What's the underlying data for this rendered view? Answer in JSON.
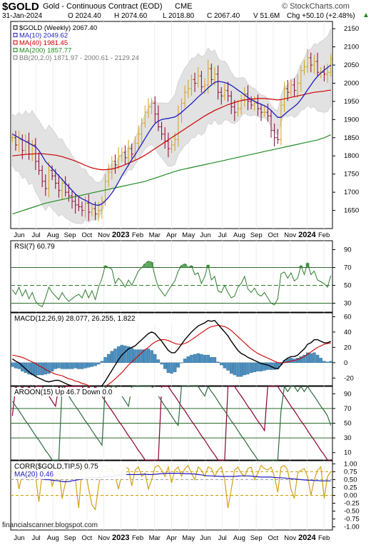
{
  "header": {
    "symbol": "$GOLD",
    "description": "Gold - Continuous Contract (EOD)",
    "exchange": "CME",
    "copyright": "© StockCharts.com",
    "date": "31-Jan-2024",
    "open": "O 2024.40",
    "high": "H 2074.60",
    "low": "L 2018.80",
    "close": "C 2067.40",
    "volume": "V 51.6M",
    "change": "Chg +50.10 (+2.48%)",
    "change_arrow": "▲"
  },
  "watermark": "financialscanner.blogspot.com",
  "colors": {
    "up": "#d4a017",
    "down": "#8b0030",
    "ma10": "#1d1dbf",
    "ma40": "#cc0000",
    "ma200": "#228b22",
    "bband": "#e2e2e2",
    "rsi": "#2e7d2e",
    "macd": "#000000",
    "signal": "#cc0000",
    "histogram": "#4a90c2",
    "aroon_up": "#2e6b3e",
    "aroon_down": "#8b0030",
    "corr": "#d4a017",
    "corr_ma": "#1d1dbf"
  },
  "x_axis_labels": [
    "Jun",
    "Jul",
    "Aug",
    "Sep",
    "Oct",
    "Nov",
    "2023",
    "Feb",
    "Mar",
    "Apr",
    "May",
    "Jun",
    "Jul",
    "Aug",
    "Sep",
    "Oct",
    "Nov",
    "2024",
    "Feb"
  ],
  "chart_data": [
    {
      "type": "candlestick",
      "legend": [
        {
          "text": "$GOLD (Weekly) 2067.40",
          "color": "#000000"
        },
        {
          "text": "MA(10) 2049.62",
          "color": "#1d1dbf"
        },
        {
          "text": "MA(40) 1981.45",
          "color": "#cc0000"
        },
        {
          "text": "MA(200) 1857.77",
          "color": "#228b22"
        },
        {
          "text": "BB(20,2.0) 1871.97 - 2000.61 - 2129.24",
          "color": "#777777"
        }
      ],
      "ylim": [
        1600,
        2170
      ],
      "y_ticks": [
        1650,
        1700,
        1750,
        1800,
        1850,
        1900,
        1950,
        2000,
        2050,
        2100,
        2150
      ],
      "close": [
        1850,
        1830,
        1845,
        1815,
        1840,
        1805,
        1830,
        1785,
        1760,
        1730,
        1710,
        1760,
        1745,
        1725,
        1705,
        1725,
        1700,
        1690,
        1675,
        1665,
        1660,
        1650,
        1670,
        1645,
        1655,
        1640,
        1650,
        1675,
        1730,
        1755,
        1785,
        1775,
        1800,
        1810,
        1795,
        1820,
        1805,
        1835,
        1860,
        1890,
        1920,
        1935,
        1945,
        1915,
        1880,
        1860,
        1840,
        1820,
        1830,
        1845,
        1915,
        1945,
        1975,
        1985,
        2010,
        2000,
        2020,
        1990,
        1995,
        2040,
        2010,
        2025,
        1975,
        1965,
        1980,
        1965,
        1935,
        1920,
        1930,
        1955,
        1970,
        1950,
        1940,
        1945,
        1930,
        1920,
        1920,
        1910,
        1870,
        1850,
        1845,
        1940,
        1985,
        1975,
        1995,
        1980,
        2000,
        2035,
        2045,
        2070,
        2050,
        2060,
        2030,
        2030,
        2025,
        2030,
        2067
      ],
      "ma10": [
        1860,
        1855,
        1850,
        1845,
        1840,
        1835,
        1830,
        1825,
        1815,
        1800,
        1785,
        1775,
        1765,
        1755,
        1745,
        1735,
        1725,
        1715,
        1705,
        1695,
        1688,
        1682,
        1678,
        1673,
        1668,
        1665,
        1664,
        1668,
        1676,
        1686,
        1698,
        1712,
        1728,
        1745,
        1760,
        1775,
        1790,
        1803,
        1818,
        1833,
        1848,
        1863,
        1877,
        1889,
        1896,
        1900,
        1902,
        1903,
        1905,
        1907,
        1913,
        1920,
        1928,
        1936,
        1944,
        1953,
        1962,
        1970,
        1978,
        1987,
        1995,
        2002,
        2005,
        2004,
        2002,
        1999,
        1994,
        1988,
        1981,
        1975,
        1968,
        1961,
        1955,
        1950,
        1946,
        1942,
        1938,
        1933,
        1925,
        1915,
        1906,
        1906,
        1914,
        1922,
        1929,
        1936,
        1944,
        1955,
        1968,
        1982,
        1995,
        2008,
        2019,
        2028,
        2036,
        2043,
        2050
      ],
      "ma40": [
        1800,
        1801,
        1802,
        1803,
        1804,
        1805,
        1805,
        1806,
        1806,
        1806,
        1805,
        1804,
        1803,
        1802,
        1800,
        1798,
        1795,
        1792,
        1789,
        1786,
        1782,
        1778,
        1774,
        1770,
        1767,
        1765,
        1763,
        1762,
        1762,
        1763,
        1764,
        1766,
        1769,
        1772,
        1776,
        1780,
        1784,
        1788,
        1792,
        1797,
        1802,
        1808,
        1814,
        1820,
        1826,
        1832,
        1838,
        1844,
        1850,
        1856,
        1862,
        1868,
        1874,
        1880,
        1886,
        1892,
        1898,
        1904,
        1910,
        1915,
        1920,
        1925,
        1929,
        1933,
        1937,
        1941,
        1944,
        1947,
        1950,
        1952,
        1954,
        1955,
        1956,
        1957,
        1958,
        1958,
        1958,
        1957,
        1956,
        1955,
        1954,
        1955,
        1957,
        1959,
        1961,
        1963,
        1965,
        1967,
        1969,
        1971,
        1973,
        1975,
        1976,
        1977,
        1978,
        1980,
        1981
      ],
      "ma200": [
        1640,
        1643,
        1646,
        1649,
        1652,
        1655,
        1658,
        1661,
        1664,
        1667,
        1670,
        1672,
        1674,
        1676,
        1678,
        1680,
        1682,
        1684,
        1686,
        1688,
        1690,
        1692,
        1694,
        1696,
        1698,
        1700,
        1702,
        1704,
        1706,
        1708,
        1710,
        1712,
        1714,
        1716,
        1718,
        1720,
        1722,
        1724,
        1726,
        1728,
        1730,
        1733,
        1736,
        1739,
        1742,
        1745,
        1748,
        1751,
        1754,
        1757,
        1760,
        1762,
        1764,
        1766,
        1768,
        1770,
        1772,
        1774,
        1776,
        1778,
        1780,
        1782,
        1784,
        1786,
        1788,
        1790,
        1792,
        1794,
        1796,
        1798,
        1800,
        1802,
        1804,
        1806,
        1808,
        1810,
        1812,
        1814,
        1816,
        1818,
        1820,
        1822,
        1824,
        1826,
        1828,
        1830,
        1832,
        1834,
        1836,
        1838,
        1840,
        1842,
        1844,
        1847,
        1850,
        1854,
        1858
      ]
    },
    {
      "type": "line",
      "legend": "RSI(7) 60.79",
      "ylim": [
        20,
        100
      ],
      "y_ticks": [
        30,
        50,
        70,
        90
      ],
      "reference_lines": [
        70,
        50,
        30
      ],
      "values": [
        45,
        40,
        48,
        38,
        45,
        35,
        42,
        32,
        28,
        26,
        36,
        48,
        42,
        38,
        34,
        42,
        36,
        32,
        35,
        38,
        40,
        36,
        45,
        36,
        44,
        34,
        48,
        58,
        72,
        70,
        68,
        52,
        58,
        54,
        48,
        56,
        50,
        58,
        66,
        70,
        74,
        77,
        76,
        60,
        48,
        43,
        38,
        44,
        50,
        55,
        66,
        72,
        74,
        70,
        72,
        62,
        64,
        52,
        60,
        73,
        56,
        60,
        44,
        42,
        50,
        42,
        36,
        38,
        48,
        52,
        60,
        46,
        42,
        47,
        40,
        38,
        42,
        36,
        30,
        28,
        35,
        63,
        65,
        58,
        64,
        55,
        58,
        72,
        62,
        75,
        62,
        66,
        56,
        54,
        52,
        48,
        61
      ]
    },
    {
      "type": "line",
      "legend": "MACD(12,26,9) 28.077, 26.255, 1.822",
      "ylim": [
        -30,
        65
      ],
      "y_ticks": [
        -20,
        0,
        20,
        40,
        60
      ],
      "macd": [
        5,
        2,
        0,
        -4,
        -8,
        -12,
        -15,
        -18,
        -20,
        -22,
        -24,
        -25,
        -24,
        -23,
        -23,
        -25,
        -27,
        -29,
        -30,
        -31,
        -33,
        -35,
        -35,
        -36,
        -36,
        -36,
        -34,
        -30,
        -24,
        -17,
        -10,
        -3,
        4,
        10,
        14,
        18,
        20,
        22,
        26,
        30,
        34,
        38,
        40,
        38,
        33,
        28,
        22,
        16,
        13,
        13,
        18,
        24,
        30,
        35,
        40,
        44,
        48,
        50,
        52,
        55,
        54,
        55,
        50,
        45,
        40,
        35,
        28,
        22,
        16,
        12,
        10,
        7,
        5,
        3,
        1,
        -1,
        -2,
        -3,
        -5,
        -7,
        -8,
        -3,
        3,
        6,
        8,
        8,
        10,
        14,
        18,
        24,
        26,
        30,
        30,
        28,
        26,
        26,
        28
      ],
      "signal": [
        10,
        9,
        8,
        7,
        5,
        3,
        1,
        -1,
        -4,
        -6,
        -9,
        -11,
        -13,
        -15,
        -16,
        -17,
        -19,
        -21,
        -22,
        -24,
        -25,
        -27,
        -28,
        -30,
        -31,
        -32,
        -32,
        -32,
        -31,
        -28,
        -25,
        -21,
        -17,
        -13,
        -8,
        -3,
        1,
        5,
        9,
        13,
        17,
        20,
        24,
        27,
        29,
        30,
        30,
        29,
        27,
        25,
        24,
        24,
        25,
        27,
        30,
        33,
        36,
        39,
        42,
        45,
        47,
        48,
        49,
        48,
        47,
        45,
        42,
        38,
        34,
        30,
        26,
        22,
        18,
        15,
        12,
        10,
        8,
        6,
        4,
        2,
        0,
        0,
        0,
        1,
        2,
        3,
        4,
        6,
        8,
        11,
        14,
        17,
        20,
        22,
        24,
        25,
        26
      ]
    },
    {
      "type": "line",
      "legend": "AROON(15) Up 46.7 Down 0.0",
      "ylim": [
        0,
        100
      ],
      "y_ticks": [
        10,
        30,
        50,
        70,
        90
      ],
      "reference_lines": [
        70,
        50,
        30
      ],
      "aroon_up": [
        80,
        73,
        67,
        60,
        53,
        47,
        40,
        33,
        27,
        20,
        13,
        7,
        0,
        0,
        0,
        100,
        93,
        87,
        80,
        73,
        67,
        60,
        53,
        47,
        40,
        33,
        27,
        20,
        100,
        93,
        100,
        100,
        93,
        87,
        80,
        73,
        100,
        100,
        100,
        100,
        100,
        100,
        100,
        93,
        87,
        80,
        73,
        67,
        60,
        53,
        47,
        100,
        100,
        100,
        100,
        100,
        100,
        93,
        87,
        100,
        93,
        87,
        80,
        73,
        67,
        60,
        53,
        47,
        40,
        33,
        27,
        20,
        13,
        7,
        0,
        0,
        0,
        0,
        0,
        0,
        0,
        67,
        100,
        93,
        100,
        100,
        93,
        100,
        93,
        100,
        93,
        87,
        80,
        73,
        67,
        60,
        47
      ],
      "aroon_down": [
        60,
        100,
        93,
        100,
        93,
        100,
        93,
        100,
        100,
        100,
        93,
        87,
        80,
        73,
        100,
        93,
        100,
        100,
        100,
        100,
        100,
        100,
        93,
        100,
        93,
        100,
        93,
        87,
        80,
        73,
        67,
        60,
        53,
        47,
        40,
        33,
        27,
        20,
        13,
        7,
        0,
        0,
        0,
        0,
        0,
        100,
        100,
        100,
        93,
        87,
        80,
        73,
        67,
        60,
        53,
        47,
        40,
        33,
        27,
        20,
        13,
        7,
        0,
        0,
        0,
        100,
        100,
        100,
        93,
        87,
        80,
        73,
        67,
        60,
        53,
        47,
        40,
        100,
        100,
        100,
        100,
        93,
        87,
        80,
        73,
        67,
        60,
        53,
        47,
        40,
        33,
        27,
        20,
        13,
        7,
        0,
        0
      ]
    },
    {
      "type": "line",
      "legend": "CORR($GOLD,TIP,5) 0.75",
      "legend2": "MA(20) 0.46",
      "ylim": [
        -1.1,
        1.1
      ],
      "y_ticks": [
        -1.0,
        -0.75,
        -0.5,
        -0.25,
        0.0,
        0.25,
        0.5,
        0.75,
        1.0
      ],
      "reference_lines": [
        0.75,
        0.5,
        0.0
      ],
      "corr": [
        0.6,
        0.8,
        0.2,
        0.7,
        0.9,
        0.5,
        0.85,
        0.6,
        -0.2,
        0.7,
        0.8,
        0.9,
        0.3,
        0.6,
        0.85,
        -0.1,
        0.4,
        0.9,
        0.7,
        0.5,
        -0.4,
        0.9,
        0.8,
        0.2,
        -0.3,
        -0.45,
        0.3,
        0.9,
        0.95,
        0.8,
        0.85,
        0.6,
        0.2,
        0.7,
        0.9,
        0.85,
        0.3,
        0.8,
        0.9,
        0.6,
        0.7,
        0.2,
        0.5,
        0.9,
        0.95,
        0.8,
        0.6,
        0.9,
        0.4,
        0.8,
        0.9,
        0.6,
        0.85,
        0.95,
        0.7,
        0.5,
        0.9,
        0.8,
        0.6,
        0.9,
        0.85,
        0.6,
        0.8,
        0.9,
        0.5,
        -0.4,
        0.2,
        0.8,
        0.9,
        0.7,
        0.6,
        0.85,
        0.9,
        0.5,
        0.7,
        0.95,
        0.85,
        0.8,
        0.9,
        0.6,
        0.1,
        0.9,
        0.95,
        0.8,
        0.2,
        -0.1,
        0.7,
        0.8,
        0.85,
        0.6,
        0.0,
        0.5,
        0.8,
        0.9,
        -0.1,
        0.6,
        0.75
      ],
      "ma20": [
        0.55,
        0.56,
        0.55,
        0.54,
        0.56,
        0.57,
        0.56,
        0.55,
        0.53,
        0.52,
        0.5,
        0.5,
        0.48,
        0.47,
        0.46,
        0.44,
        0.43,
        0.44,
        0.46,
        0.48,
        0.5,
        0.52,
        0.54,
        0.55,
        0.56,
        0.56,
        0.57,
        0.58,
        0.6,
        0.6,
        0.6,
        0.62,
        0.64,
        0.65,
        0.66,
        0.66,
        0.66,
        0.66,
        0.66,
        0.67,
        0.67,
        0.66,
        0.66,
        0.67,
        0.68,
        0.69,
        0.7,
        0.7,
        0.7,
        0.7,
        0.7,
        0.7,
        0.69,
        0.69,
        0.68,
        0.68,
        0.66,
        0.65,
        0.63,
        0.62,
        0.62,
        0.61,
        0.61,
        0.6,
        0.6,
        0.6,
        0.6,
        0.6,
        0.61,
        0.62,
        0.62,
        0.62,
        0.61,
        0.6,
        0.59,
        0.58,
        0.58,
        0.58,
        0.58,
        0.57,
        0.56,
        0.56,
        0.55,
        0.54,
        0.53,
        0.52,
        0.51,
        0.5,
        0.49,
        0.48,
        0.48,
        0.47,
        0.47,
        0.46,
        0.46,
        0.46,
        0.46
      ]
    }
  ]
}
